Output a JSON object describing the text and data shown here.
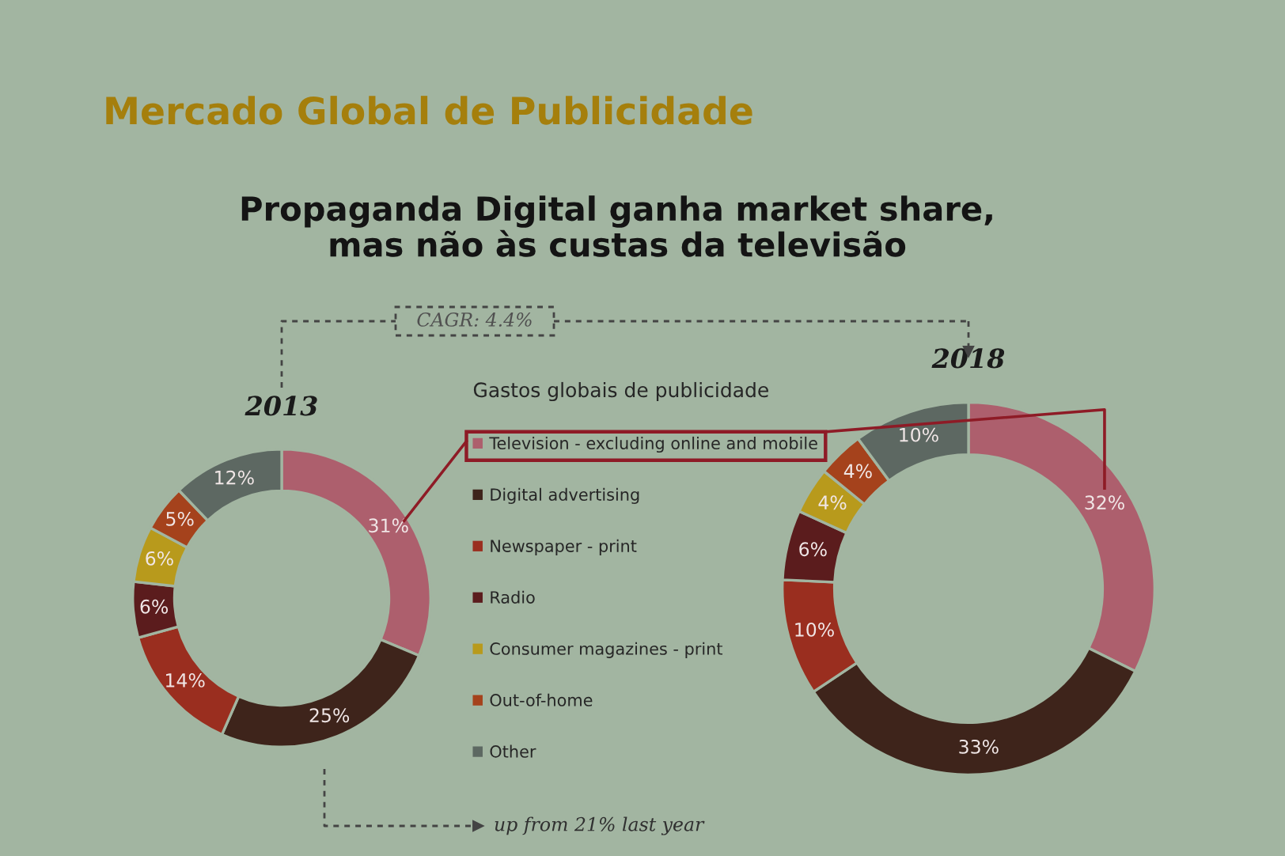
{
  "chart_data": {
    "type": "donut",
    "title": "Mercado Global de Publicidade",
    "subtitle": "Propaganda Digital ganha market share,\nmas não às custas da televisão",
    "categories": [
      "Television - excluding online and mobile",
      "Digital advertising",
      "Newspaper - print",
      "Radio",
      "Consumer magazines - print",
      "Out-of-home",
      "Other"
    ],
    "colors": [
      "#ad5f6d",
      "#3e241b",
      "#9a2e1f",
      "#5b1c1d",
      "#b89a1c",
      "#a5421c",
      "#5d6862"
    ],
    "series": [
      {
        "name": "2013",
        "values": [
          31,
          25,
          14,
          6,
          6,
          5,
          12
        ],
        "value_labels": [
          "31%",
          "25%",
          "14%",
          "6%",
          "6%",
          "5%",
          "12%"
        ]
      },
      {
        "name": "2018",
        "values": [
          32,
          33,
          10,
          6,
          4,
          4,
          10
        ],
        "value_labels": [
          "32%",
          "33%",
          "10%",
          "6%",
          "4%",
          "4%",
          "10%"
        ]
      }
    ],
    "legend": "right",
    "legend_title": "Gastos globais de publicidade",
    "annotations": [
      "CAGR: 4.4%",
      "up from 21% last year"
    ]
  }
}
